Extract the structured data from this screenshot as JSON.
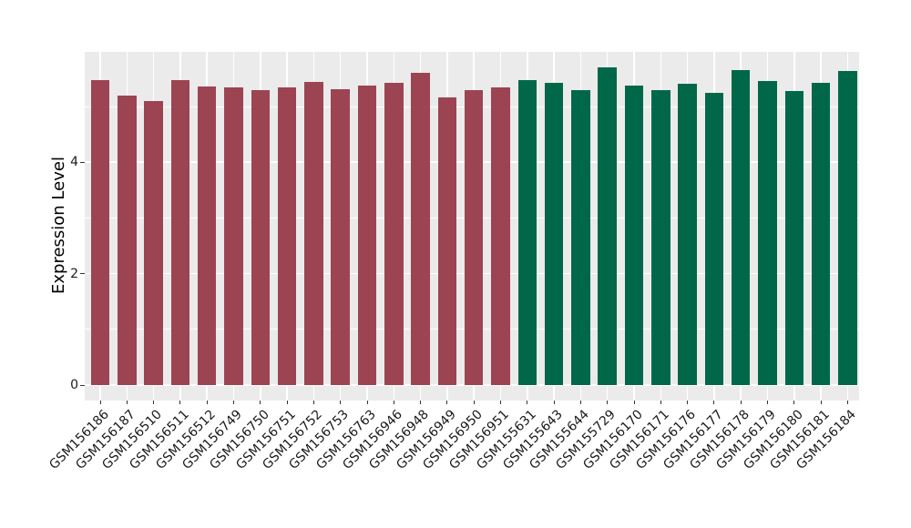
{
  "chart_data": {
    "type": "bar",
    "title": "",
    "xlabel": "",
    "ylabel": "Expression Level",
    "categories": [
      "GSM156186",
      "GSM156187",
      "GSM156510",
      "GSM156511",
      "GSM156512",
      "GSM156749",
      "GSM156750",
      "GSM156751",
      "GSM156752",
      "GSM156753",
      "GSM156763",
      "GSM156946",
      "GSM156948",
      "GSM156949",
      "GSM156950",
      "GSM156951",
      "GSM155631",
      "GSM155643",
      "GSM155644",
      "GSM155729",
      "GSM156170",
      "GSM156171",
      "GSM156176",
      "GSM156177",
      "GSM156178",
      "GSM156179",
      "GSM156180",
      "GSM156181",
      "GSM156184"
    ],
    "values": [
      5.47,
      5.19,
      5.1,
      5.48,
      5.36,
      5.34,
      5.3,
      5.35,
      5.44,
      5.31,
      5.37,
      5.43,
      5.61,
      5.16,
      5.29,
      5.35,
      5.47,
      5.43,
      5.3,
      5.7,
      5.38,
      5.3,
      5.41,
      5.24,
      5.65,
      5.46,
      5.27,
      5.42,
      5.63
    ],
    "groups": [
      "red",
      "red",
      "red",
      "red",
      "red",
      "red",
      "red",
      "red",
      "red",
      "red",
      "red",
      "red",
      "red",
      "red",
      "red",
      "red",
      "green",
      "green",
      "green",
      "green",
      "green",
      "green",
      "green",
      "green",
      "green",
      "green",
      "green",
      "green",
      "green"
    ],
    "group_colors": {
      "red": "#9C4452",
      "green": "#006849"
    },
    "yticks": [
      "0",
      "2",
      "4"
    ],
    "ytick_values": [
      0,
      2,
      4
    ],
    "minor_ytick_values": [
      1,
      3,
      5
    ],
    "ylim": [
      -0.29,
      5.99
    ],
    "panel_background": "#EBEBEB",
    "grid_color": "#FFFFFF",
    "grid": "on",
    "legend_position": "none"
  }
}
